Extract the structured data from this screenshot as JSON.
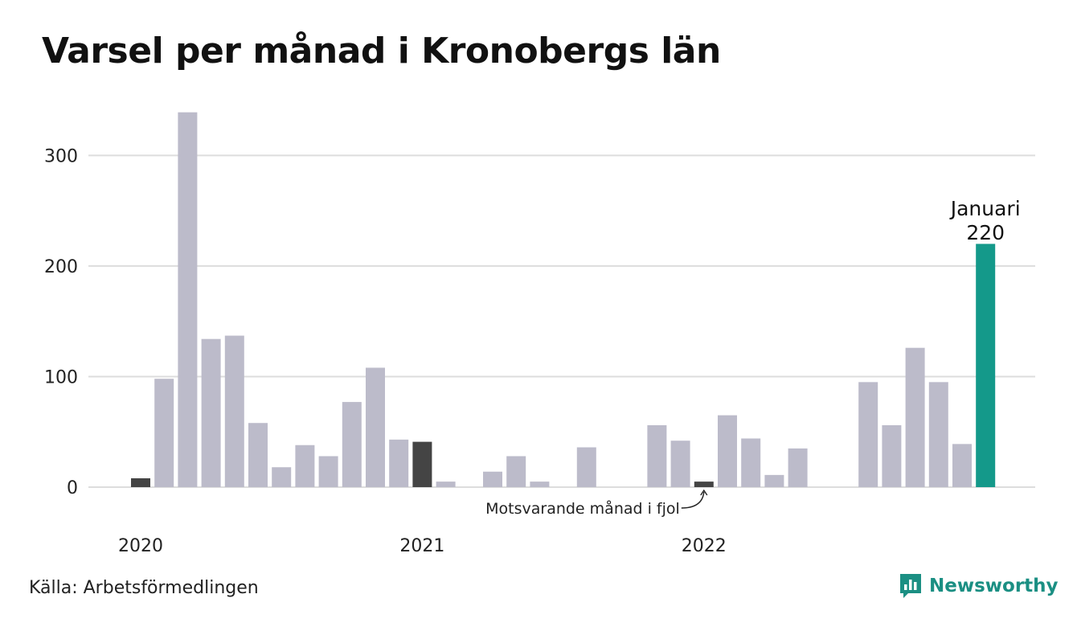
{
  "title": "Varsel per månad i Kronobergs län",
  "source": "Källa: Arbetsförmedlingen",
  "brand": {
    "name": "Newsworthy",
    "icon": "newsworthy-logo-icon",
    "color": "#1b8f83"
  },
  "chart_data": {
    "type": "bar",
    "title": "Varsel per månad i Kronobergs län",
    "xlabel": "",
    "ylabel": "",
    "ylim": [
      0,
      340
    ],
    "yticks": [
      0,
      100,
      200,
      300
    ],
    "ytick_labels": [
      "0",
      "100",
      "200",
      "300"
    ],
    "grid": true,
    "x_year_labels": [
      {
        "label": "2020",
        "bar_index": 0
      },
      {
        "label": "2021",
        "bar_index": 12
      },
      {
        "label": "2022",
        "bar_index": 24
      }
    ],
    "colors": {
      "default": "#bcbbca",
      "same_month_previous_years": "#444444",
      "current": "#14998a",
      "grid": "#dddddd"
    },
    "values": [
      8,
      98,
      339,
      134,
      137,
      58,
      18,
      38,
      28,
      77,
      108,
      43,
      41,
      5,
      0,
      14,
      28,
      5,
      0,
      36,
      0,
      0,
      56,
      42,
      5,
      65,
      44,
      11,
      35,
      0,
      0,
      95,
      56,
      126,
      95,
      39,
      220
    ],
    "highlight": {
      "same_month_previous_years": [
        0,
        12,
        24
      ],
      "current": 36
    },
    "annotations": [
      {
        "text": "Januari",
        "bar_index": 36
      },
      {
        "text": "220",
        "bar_index": 36
      },
      {
        "text": "Motsvarande månad i fjol",
        "bar_index": 24
      }
    ]
  }
}
